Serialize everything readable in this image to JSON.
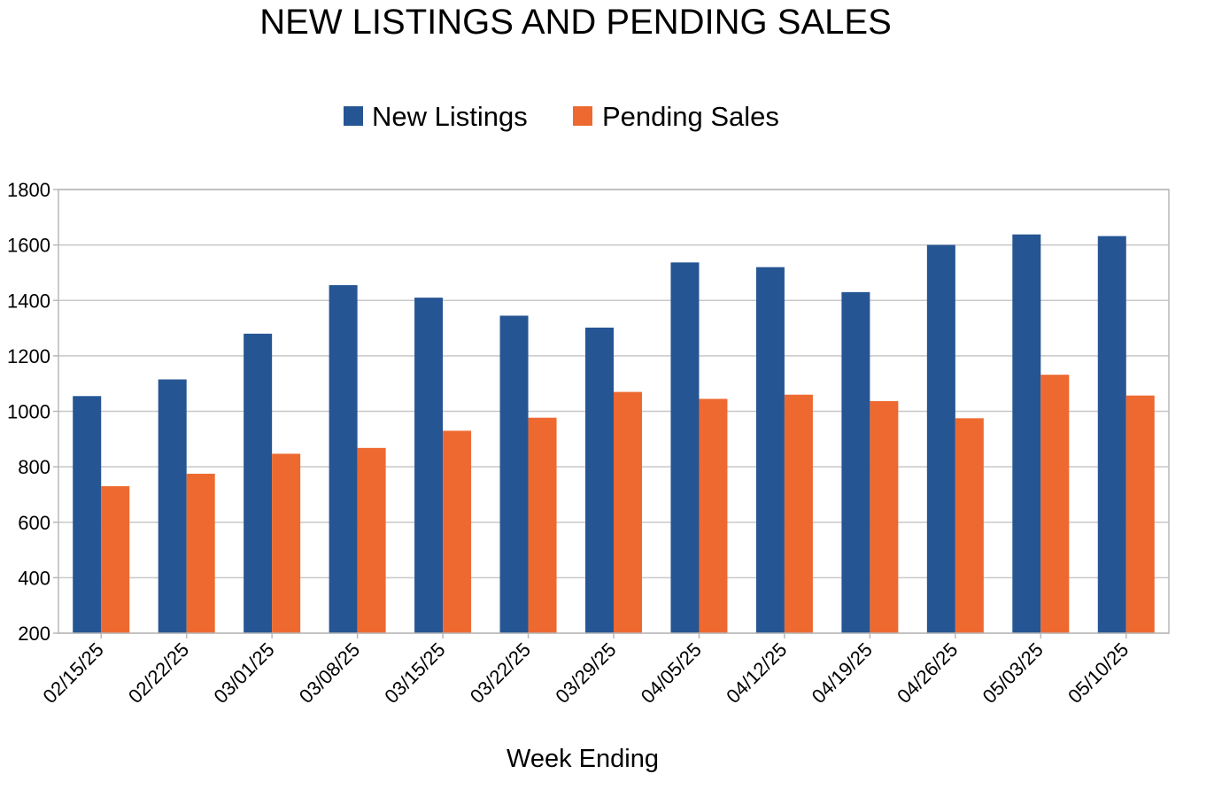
{
  "chart_data": {
    "type": "bar",
    "title": "NEW LISTINGS AND PENDING SALES",
    "xlabel": "Week Ending",
    "ylabel": "",
    "categories": [
      "02/15/25",
      "02/22/25",
      "03/01/25",
      "03/08/25",
      "03/15/25",
      "03/22/25",
      "03/29/25",
      "04/05/25",
      "04/12/25",
      "04/19/25",
      "04/26/25",
      "05/03/25",
      "05/10/25"
    ],
    "series": [
      {
        "name": "New Listings",
        "color": "#255593",
        "values": [
          1055,
          1115,
          1280,
          1455,
          1410,
          1345,
          1302,
          1537,
          1520,
          1430,
          1600,
          1638,
          1632
        ]
      },
      {
        "name": "Pending Sales",
        "color": "#ed6930",
        "values": [
          730,
          775,
          847,
          868,
          930,
          977,
          1070,
          1045,
          1060,
          1037,
          975,
          1132,
          1057
        ]
      }
    ],
    "ylim": [
      200,
      1800
    ],
    "yticks": [
      200,
      400,
      600,
      800,
      1000,
      1200,
      1400,
      1600,
      1800
    ],
    "grid": true,
    "legend_position": "top-center"
  }
}
